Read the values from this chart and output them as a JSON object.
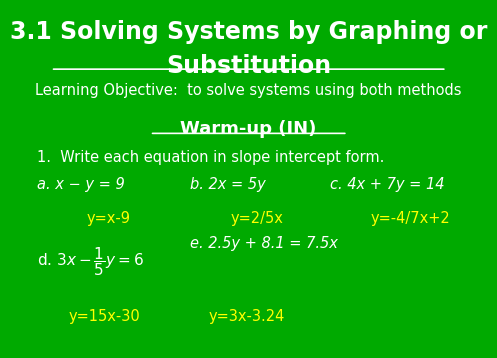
{
  "bg_color": "#00AA00",
  "title_line1": "3.1 Solving Systems by Graphing or",
  "title_line2": "Substitution",
  "subtitle": "Learning Objective:  to solve systems using both methods",
  "warmup": "Warm-up (IN)",
  "instruction": "1.  Write each equation in slope intercept form.",
  "eq_a": "a. x − y = 9",
  "eq_b": "b. 2x = 5y",
  "eq_c": "c. 4x + 7y = 14",
  "ans_a": "y=x-9",
  "ans_b": "y=2/5x",
  "ans_c": "y=-4/7x+2",
  "eq_e": "e. 2.5y + 8.1 = 7.5x",
  "ans_d": "y=15x-30",
  "ans_e": "y=3x-3.24",
  "white": "#FFFFFF",
  "yellow": "#FFFF00",
  "title_fs": 17,
  "subtitle_fs": 10.5,
  "warmup_fs": 13,
  "instr_fs": 10.5,
  "eq_fs": 10.5,
  "ans_fs": 10.5
}
